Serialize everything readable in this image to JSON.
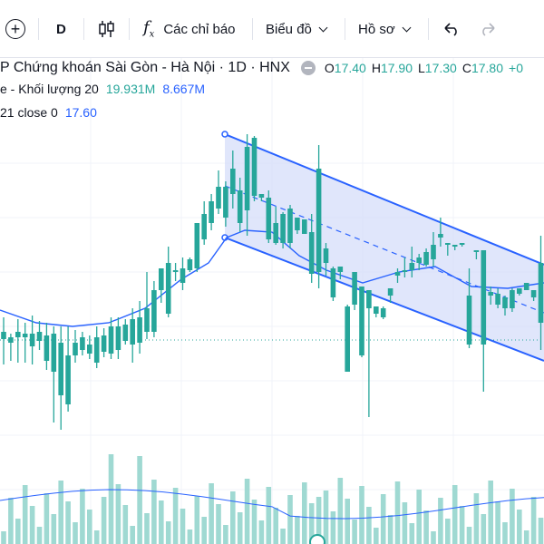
{
  "toolbar": {
    "interval": "D",
    "indicators_label": "Các chỉ báo",
    "chart_label": "Biểu đồ",
    "profile_label": "Hồ sơ"
  },
  "legend": {
    "symbol_title": "P Chứng khoán Sài Gòn - Hà Nội · 1D · HNX",
    "ohlc": {
      "o": "17.40",
      "h": "17.90",
      "l": "17.30",
      "c": "17.80",
      "change": "+0"
    },
    "volume_label": "e - Khối lượng 20",
    "volume_value": "19.931M",
    "volume_ma": "8.667M",
    "ma_label": "21 close 0",
    "ma_value": "17.60"
  },
  "colors": {
    "up": "#26a69a",
    "down": "#ef5350",
    "ma": "#2962ff",
    "channel": "#2962ff",
    "channel_fill": "#d6defa"
  },
  "chart_data": {
    "type": "candlestick",
    "candles": [
      [
        374,
        366,
        402,
        350
      ],
      [
        378,
        372,
        398,
        368
      ],
      [
        372,
        366,
        400,
        352
      ],
      [
        372,
        368,
        400,
        356
      ],
      [
        382,
        368,
        402,
        348
      ],
      [
        376,
        366,
        386,
        354
      ],
      [
        398,
        370,
        408,
        356
      ],
      [
        410,
        368,
        466,
        360
      ],
      [
        436,
        378,
        474,
        360
      ],
      [
        446,
        392,
        454,
        360
      ],
      [
        392,
        378,
        400,
        364
      ],
      [
        386,
        372,
        392,
        366
      ],
      [
        390,
        380,
        396,
        370
      ],
      [
        400,
        372,
        406,
        360
      ],
      [
        388,
        370,
        394,
        362
      ],
      [
        390,
        360,
        396,
        350
      ],
      [
        386,
        360,
        396,
        350
      ],
      [
        376,
        358,
        380,
        352
      ],
      [
        380,
        352,
        400,
        340
      ],
      [
        378,
        350,
        390,
        332
      ],
      [
        366,
        340,
        374,
        300
      ],
      [
        366,
        320,
        372,
        310
      ],
      [
        320,
        296,
        334,
        296
      ],
      [
        346,
        290,
        350,
        272
      ],
      [
        300,
        298,
        310,
        290
      ],
      [
        312,
        296,
        320,
        284
      ],
      [
        298,
        286,
        300,
        284
      ],
      [
        296,
        246,
        300,
        246
      ],
      [
        264,
        236,
        270,
        222
      ],
      [
        246,
        222,
        254,
        214
      ],
      [
        230,
        206,
        236,
        188
      ],
      [
        240,
        206,
        250,
        200
      ],
      [
        214,
        186,
        230,
        166
      ],
      [
        246,
        210,
        256,
        196
      ],
      [
        232,
        162,
        260,
        148
      ],
      [
        216,
        152,
        222,
        150
      ],
      [
        218,
        214,
        222,
        214
      ],
      [
        264,
        218,
        268,
        210
      ],
      [
        268,
        246,
        270,
        228
      ],
      [
        268,
        236,
        274,
        234
      ],
      [
        268,
        230,
        274,
        226
      ],
      [
        254,
        240,
        258,
        240
      ],
      [
        258,
        242,
        256,
        250
      ],
      [
        302,
        256,
        312,
        236
      ],
      [
        300,
        186,
        318,
        160
      ],
      [
        290,
        274,
        304,
        268
      ],
      [
        328,
        296,
        332,
        294
      ],
      [
        300,
        294,
        308,
        294
      ],
      [
        410,
        338,
        410,
        336
      ],
      [
        336,
        300,
        342,
        300
      ],
      [
        392,
        316,
        394,
        348
      ],
      [
        340,
        320,
        460,
        325
      ],
      [
        346,
        338,
        350,
        346
      ],
      [
        350,
        340,
        352,
        338
      ],
      [
        326,
        318,
        334,
        322
      ],
      [
        304,
        300,
        312,
        296
      ],
      [
        300,
        298,
        306,
        284
      ],
      [
        298,
        290,
        306,
        272
      ],
      [
        290,
        284,
        298,
        280
      ],
      [
        292,
        278,
        294,
        274
      ],
      [
        286,
        270,
        294,
        256
      ],
      [
        262,
        258,
        272,
        240
      ],
      [
        270,
        268,
        282,
        268
      ],
      [
        272,
        270,
        276,
        270
      ],
      [
        270,
        268,
        272,
        270
      ],
      [
        380,
        326,
        384,
        296
      ],
      [
        278,
        276,
        286,
        276
      ],
      [
        380,
        276,
        432,
        296
      ],
      [
        326,
        322,
        336,
        316
      ],
      [
        336,
        324,
        340,
        318
      ],
      [
        340,
        328,
        348,
        326
      ],
      [
        340,
        320,
        344,
        318
      ],
      [
        324,
        318,
        326,
        320
      ],
      [
        320,
        312,
        320,
        314
      ],
      [
        328,
        320,
        332,
        320
      ],
      [
        356,
        290,
        386,
        260
      ],
      [
        296,
        280,
        300,
        278
      ]
    ],
    "ma21_visible": true,
    "channel": "descending parallel channel with dashed midline"
  }
}
